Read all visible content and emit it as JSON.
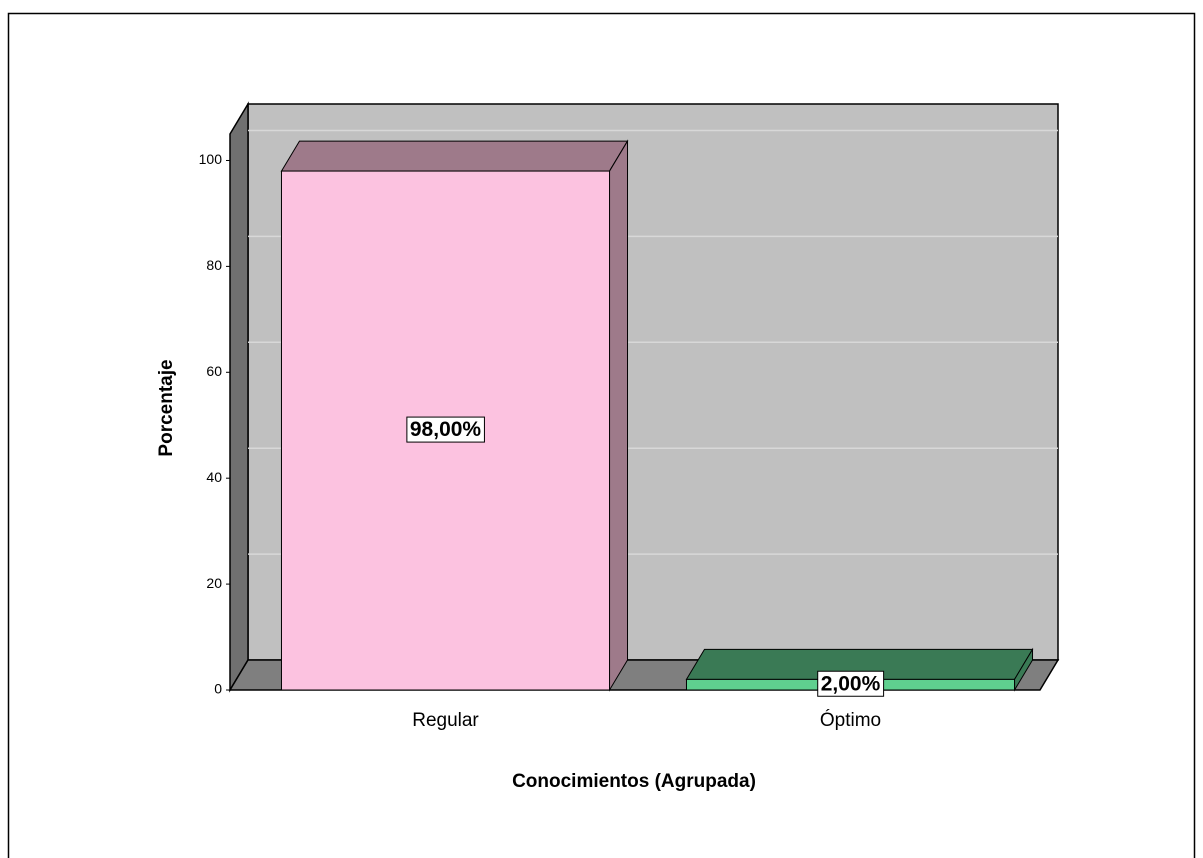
{
  "chart_data": {
    "type": "bar3d",
    "categories": [
      "Regular",
      "Óptimo"
    ],
    "values": [
      98,
      2
    ],
    "value_labels": [
      "98,00%",
      "2,00%"
    ],
    "colors": [
      "#fcc2e0",
      "#5fd08f"
    ],
    "side_colors": [
      "#9e7a8a",
      "#3a7a55"
    ],
    "xlabel": "Conocimientos (Agrupada)",
    "ylabel": "Porcentaje",
    "ylim": [
      0,
      105
    ],
    "yticks": [
      0,
      20,
      40,
      60,
      80,
      100
    ],
    "grid": true
  }
}
